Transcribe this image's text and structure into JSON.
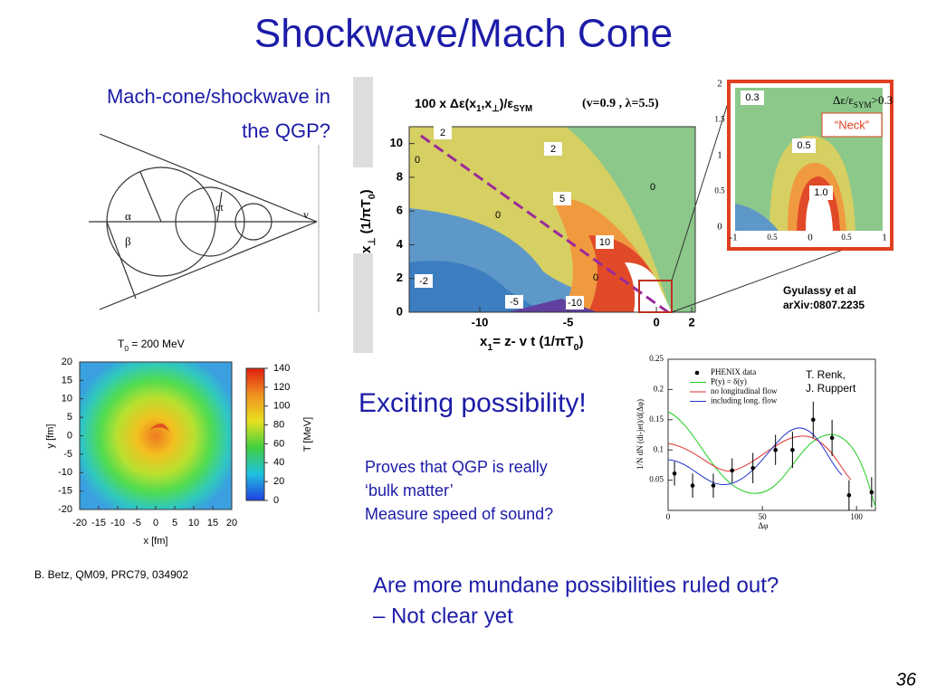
{
  "title": "Shockwave/Mach Cone",
  "slide_number": "36",
  "caption_lines": [
    "Mach-cone/shockwave in",
    "the QGP?"
  ],
  "cone_labels": {
    "ct": "ct",
    "v": "v",
    "alpha": "α",
    "beta": "β"
  },
  "heatmap": {
    "title": [
      "T",
      "0",
      " = 200 MeV"
    ],
    "xlim": [
      -20,
      20
    ],
    "ylim": [
      -20,
      20
    ],
    "xticks": [
      -20,
      -15,
      -10,
      -5,
      0,
      5,
      10,
      15,
      20
    ],
    "yticks": [
      20,
      15,
      10,
      5,
      0,
      -5,
      -10,
      -15,
      -20
    ],
    "clim": [
      0,
      140
    ],
    "cbar_ticks": [
      140,
      120,
      100,
      80,
      60,
      40,
      20,
      0
    ],
    "xlabel": "x [fm]",
    "ylabel": "y [fm]",
    "cbar_label": "T [MeV]"
  },
  "betz_citation": "B. Betz, QM09, PRC79, 034902",
  "contour": {
    "title": [
      "100 x Δε(x",
      "1",
      ",x",
      "⊥",
      ")/ε",
      "SYM"
    ],
    "params": "(v=0.9 , λ=5.5)",
    "xlim": [
      -14,
      2.2
    ],
    "ylim": [
      0,
      11
    ],
    "xticks": [
      -10,
      -5,
      0,
      2
    ],
    "yticks": [
      0,
      2,
      4,
      6,
      8,
      10
    ],
    "xlabel": [
      "x",
      "1",
      "= z- v t   (1/πT",
      "0",
      ")"
    ],
    "ylabel": [
      "x",
      "⊥",
      "  (1/πT",
      "0",
      ")"
    ],
    "levels": [
      "2",
      "0",
      "2",
      "5",
      "10",
      "0",
      "0",
      "0",
      "-2",
      "-5",
      "-10"
    ]
  },
  "inset": {
    "title": [
      "Δε/ε",
      "SYM",
      ">0.3"
    ],
    "neck": "“Neck”",
    "levels": [
      "0.3",
      "0.5",
      "1.0"
    ],
    "yticks": [
      "2",
      "1.5",
      "1",
      "0.5",
      "0"
    ],
    "xticks": [
      "-1",
      "0.5",
      "0",
      "0.5",
      "1"
    ]
  },
  "gyulassy_citation": [
    "Gyulassy et al",
    "arXiv:0807.2235"
  ],
  "phenix": {
    "xlim": [
      0,
      110
    ],
    "ylim": [
      0,
      0.25
    ],
    "xticks": [
      0,
      50,
      100
    ],
    "yticks": [
      0.05,
      0.1,
      0.15,
      0.2,
      0.25
    ],
    "xlabel": "Δφ",
    "ylabel": "1/N dN (di-jet)/d(Δφ)",
    "legend": [
      "PHENIX data",
      "P(y) = δ(y)",
      "no longitudinal flow",
      "including long. flow"
    ],
    "x": [
      3.4,
      13,
      24,
      34,
      45,
      57,
      66,
      77,
      87,
      96,
      108
    ],
    "y": [
      0.061,
      0.041,
      0.041,
      0.066,
      0.07,
      0.1,
      0.1,
      0.15,
      0.12,
      0.025,
      0.03
    ],
    "err": [
      0.02,
      0.02,
      0.02,
      0.02,
      0.025,
      0.025,
      0.03,
      0.03,
      0.03,
      0.025,
      0.025
    ]
  },
  "authors": [
    "T. Renk,",
    "J. Ruppert"
  ],
  "exciting": "Exciting possibility!",
  "points_text": [
    "Proves that QGP is really",
    "‘bulk matter’",
    "Measure speed of sound?"
  ],
  "question": [
    "Are more mundane possibilities ruled out?",
    "– Not clear yet"
  ]
}
